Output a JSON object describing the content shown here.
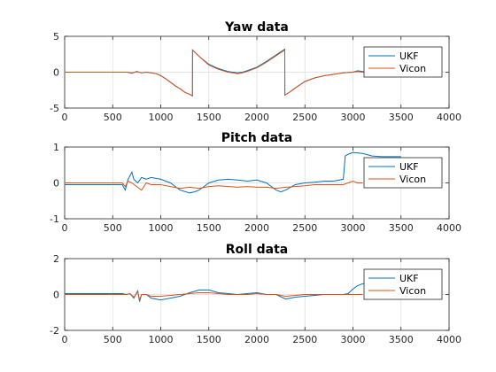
{
  "chart_data": [
    {
      "type": "line",
      "title": "Yaw data",
      "xlim": [
        0,
        4000
      ],
      "ylim": [
        -5,
        5
      ],
      "xticks": [
        0,
        500,
        1000,
        1500,
        2000,
        2500,
        3000,
        3500,
        4000
      ],
      "yticks": [
        -5,
        0,
        5
      ],
      "grid": true,
      "legend_position": "top-right",
      "series": [
        {
          "name": "UKF",
          "color": "#0072BD",
          "x": [
            0,
            650,
            700,
            750,
            800,
            850,
            900,
            950,
            1000,
            1050,
            1100,
            1150,
            1200,
            1250,
            1300,
            1330,
            1331,
            1400,
            1500,
            1600,
            1700,
            1750,
            1800,
            1850,
            1900,
            2000,
            2100,
            2200,
            2290,
            2291,
            2350,
            2400,
            2500,
            2600,
            2700,
            2800,
            2900,
            3000,
            3050,
            3100,
            3200,
            3300,
            3400,
            3500
          ],
          "y": [
            0.0,
            0.0,
            -0.15,
            0.1,
            -0.1,
            0.0,
            -0.1,
            -0.2,
            -0.5,
            -0.9,
            -1.4,
            -1.9,
            -2.3,
            -2.8,
            -3.1,
            -3.3,
            3.1,
            2.2,
            1.1,
            0.5,
            0.1,
            0.0,
            -0.1,
            0.0,
            0.2,
            0.7,
            1.5,
            2.4,
            3.2,
            -3.2,
            -2.7,
            -2.2,
            -1.3,
            -0.8,
            -0.5,
            -0.3,
            -0.1,
            0.0,
            0.2,
            0.1,
            0.0,
            0.0,
            0.0,
            0.0
          ]
        },
        {
          "name": "Vicon",
          "color": "#D95319",
          "x": [
            0,
            650,
            700,
            750,
            800,
            850,
            900,
            950,
            1000,
            1050,
            1100,
            1150,
            1200,
            1250,
            1300,
            1330,
            1331,
            1400,
            1500,
            1600,
            1700,
            1750,
            1800,
            1850,
            1900,
            2000,
            2100,
            2200,
            2290,
            2291,
            2350,
            2400,
            2500,
            2600,
            2700,
            2800,
            2900,
            3000,
            3050,
            3100,
            3200,
            3300,
            3400,
            3500
          ],
          "y": [
            0.0,
            0.0,
            -0.1,
            0.05,
            -0.1,
            0.0,
            -0.1,
            -0.2,
            -0.5,
            -0.9,
            -1.4,
            -1.9,
            -2.3,
            -2.8,
            -3.1,
            -3.3,
            3.1,
            2.2,
            1.0,
            0.4,
            0.0,
            -0.1,
            -0.2,
            -0.1,
            0.1,
            0.6,
            1.4,
            2.3,
            3.1,
            -3.2,
            -2.7,
            -2.2,
            -1.3,
            -0.8,
            -0.5,
            -0.3,
            -0.1,
            0.0,
            0.1,
            0.0,
            0.0,
            0.0,
            0.0,
            0.0
          ]
        }
      ]
    },
    {
      "type": "line",
      "title": "Pitch data",
      "xlim": [
        0,
        4000
      ],
      "ylim": [
        -1,
        1
      ],
      "xticks": [
        0,
        500,
        1000,
        1500,
        2000,
        2500,
        3000,
        3500,
        4000
      ],
      "yticks": [
        -1,
        0,
        1
      ],
      "grid": true,
      "legend_position": "top-right",
      "series": [
        {
          "name": "UKF",
          "color": "#0072BD",
          "x": [
            0,
            500,
            600,
            630,
            660,
            700,
            720,
            760,
            800,
            850,
            900,
            1000,
            1100,
            1200,
            1300,
            1350,
            1400,
            1500,
            1600,
            1700,
            1800,
            1900,
            2000,
            2100,
            2200,
            2250,
            2300,
            2400,
            2500,
            2600,
            2700,
            2800,
            2900,
            2920,
            2950,
            3000,
            3100,
            3200,
            3300,
            3500
          ],
          "y": [
            -0.05,
            -0.05,
            -0.05,
            -0.2,
            0.1,
            0.3,
            0.1,
            0.0,
            0.15,
            0.1,
            0.15,
            0.1,
            0.0,
            -0.2,
            -0.28,
            -0.25,
            -0.2,
            0.0,
            0.08,
            0.1,
            0.08,
            0.05,
            0.08,
            0.0,
            -0.2,
            -0.25,
            -0.2,
            -0.05,
            0.0,
            0.02,
            0.05,
            0.05,
            0.1,
            0.75,
            0.8,
            0.85,
            0.82,
            0.75,
            0.73,
            0.73
          ]
        },
        {
          "name": "Vicon",
          "color": "#D95319",
          "x": [
            0,
            500,
            600,
            630,
            660,
            700,
            750,
            800,
            850,
            900,
            1000,
            1100,
            1200,
            1300,
            1400,
            1500,
            1600,
            1700,
            1800,
            1900,
            2000,
            2100,
            2200,
            2300,
            2400,
            2500,
            2600,
            2700,
            2800,
            2900,
            3000,
            3050,
            3100
          ],
          "y": [
            0.0,
            0.0,
            0.0,
            -0.1,
            0.05,
            0.0,
            -0.1,
            -0.2,
            0.0,
            -0.05,
            -0.05,
            -0.1,
            -0.15,
            -0.12,
            -0.15,
            -0.1,
            -0.08,
            -0.1,
            -0.12,
            -0.1,
            -0.12,
            -0.12,
            -0.15,
            -0.12,
            -0.1,
            -0.08,
            -0.05,
            -0.05,
            -0.05,
            -0.05,
            0.05,
            0.0,
            0.0
          ]
        }
      ]
    },
    {
      "type": "line",
      "title": "Roll data",
      "xlim": [
        0,
        4000
      ],
      "ylim": [
        -2,
        2
      ],
      "xticks": [
        0,
        500,
        1000,
        1500,
        2000,
        2500,
        3000,
        3500,
        4000
      ],
      "yticks": [
        -2,
        0,
        2
      ],
      "grid": true,
      "legend_position": "top-right",
      "series": [
        {
          "name": "UKF",
          "color": "#0072BD",
          "x": [
            0,
            600,
            640,
            680,
            720,
            760,
            780,
            800,
            850,
            900,
            1000,
            1100,
            1200,
            1300,
            1400,
            1500,
            1600,
            1700,
            1800,
            1900,
            2000,
            2100,
            2200,
            2300,
            2400,
            2500,
            2600,
            2700,
            2800,
            2900,
            2950,
            3000,
            3050,
            3100,
            3200,
            3300,
            3400,
            3500
          ],
          "y": [
            0.05,
            0.05,
            0.0,
            0.05,
            -0.2,
            0.2,
            -0.4,
            0.0,
            0.0,
            -0.2,
            -0.3,
            -0.2,
            -0.1,
            0.1,
            0.25,
            0.25,
            0.1,
            0.05,
            0.0,
            0.05,
            0.1,
            0.0,
            0.0,
            -0.25,
            -0.15,
            -0.1,
            -0.05,
            0.0,
            0.0,
            0.0,
            0.05,
            0.3,
            0.5,
            0.6,
            0.6,
            0.6,
            0.6,
            0.6
          ]
        },
        {
          "name": "Vicon",
          "color": "#D95319",
          "x": [
            0,
            600,
            640,
            680,
            720,
            760,
            780,
            800,
            850,
            900,
            1000,
            1100,
            1200,
            1300,
            1400,
            1500,
            1600,
            1700,
            1800,
            1900,
            2000,
            2100,
            2200,
            2300,
            2400,
            2500,
            2600,
            2700,
            2800,
            2900,
            3000,
            3050,
            3100
          ],
          "y": [
            0.0,
            0.0,
            0.0,
            0.05,
            -0.15,
            0.15,
            -0.3,
            0.0,
            0.0,
            -0.1,
            -0.1,
            -0.05,
            0.0,
            0.05,
            0.1,
            0.1,
            0.05,
            0.0,
            0.0,
            0.0,
            0.05,
            0.0,
            0.0,
            -0.1,
            -0.05,
            0.0,
            0.0,
            0.0,
            0.0,
            0.0,
            0.0,
            0.0,
            0.0
          ]
        }
      ]
    }
  ]
}
